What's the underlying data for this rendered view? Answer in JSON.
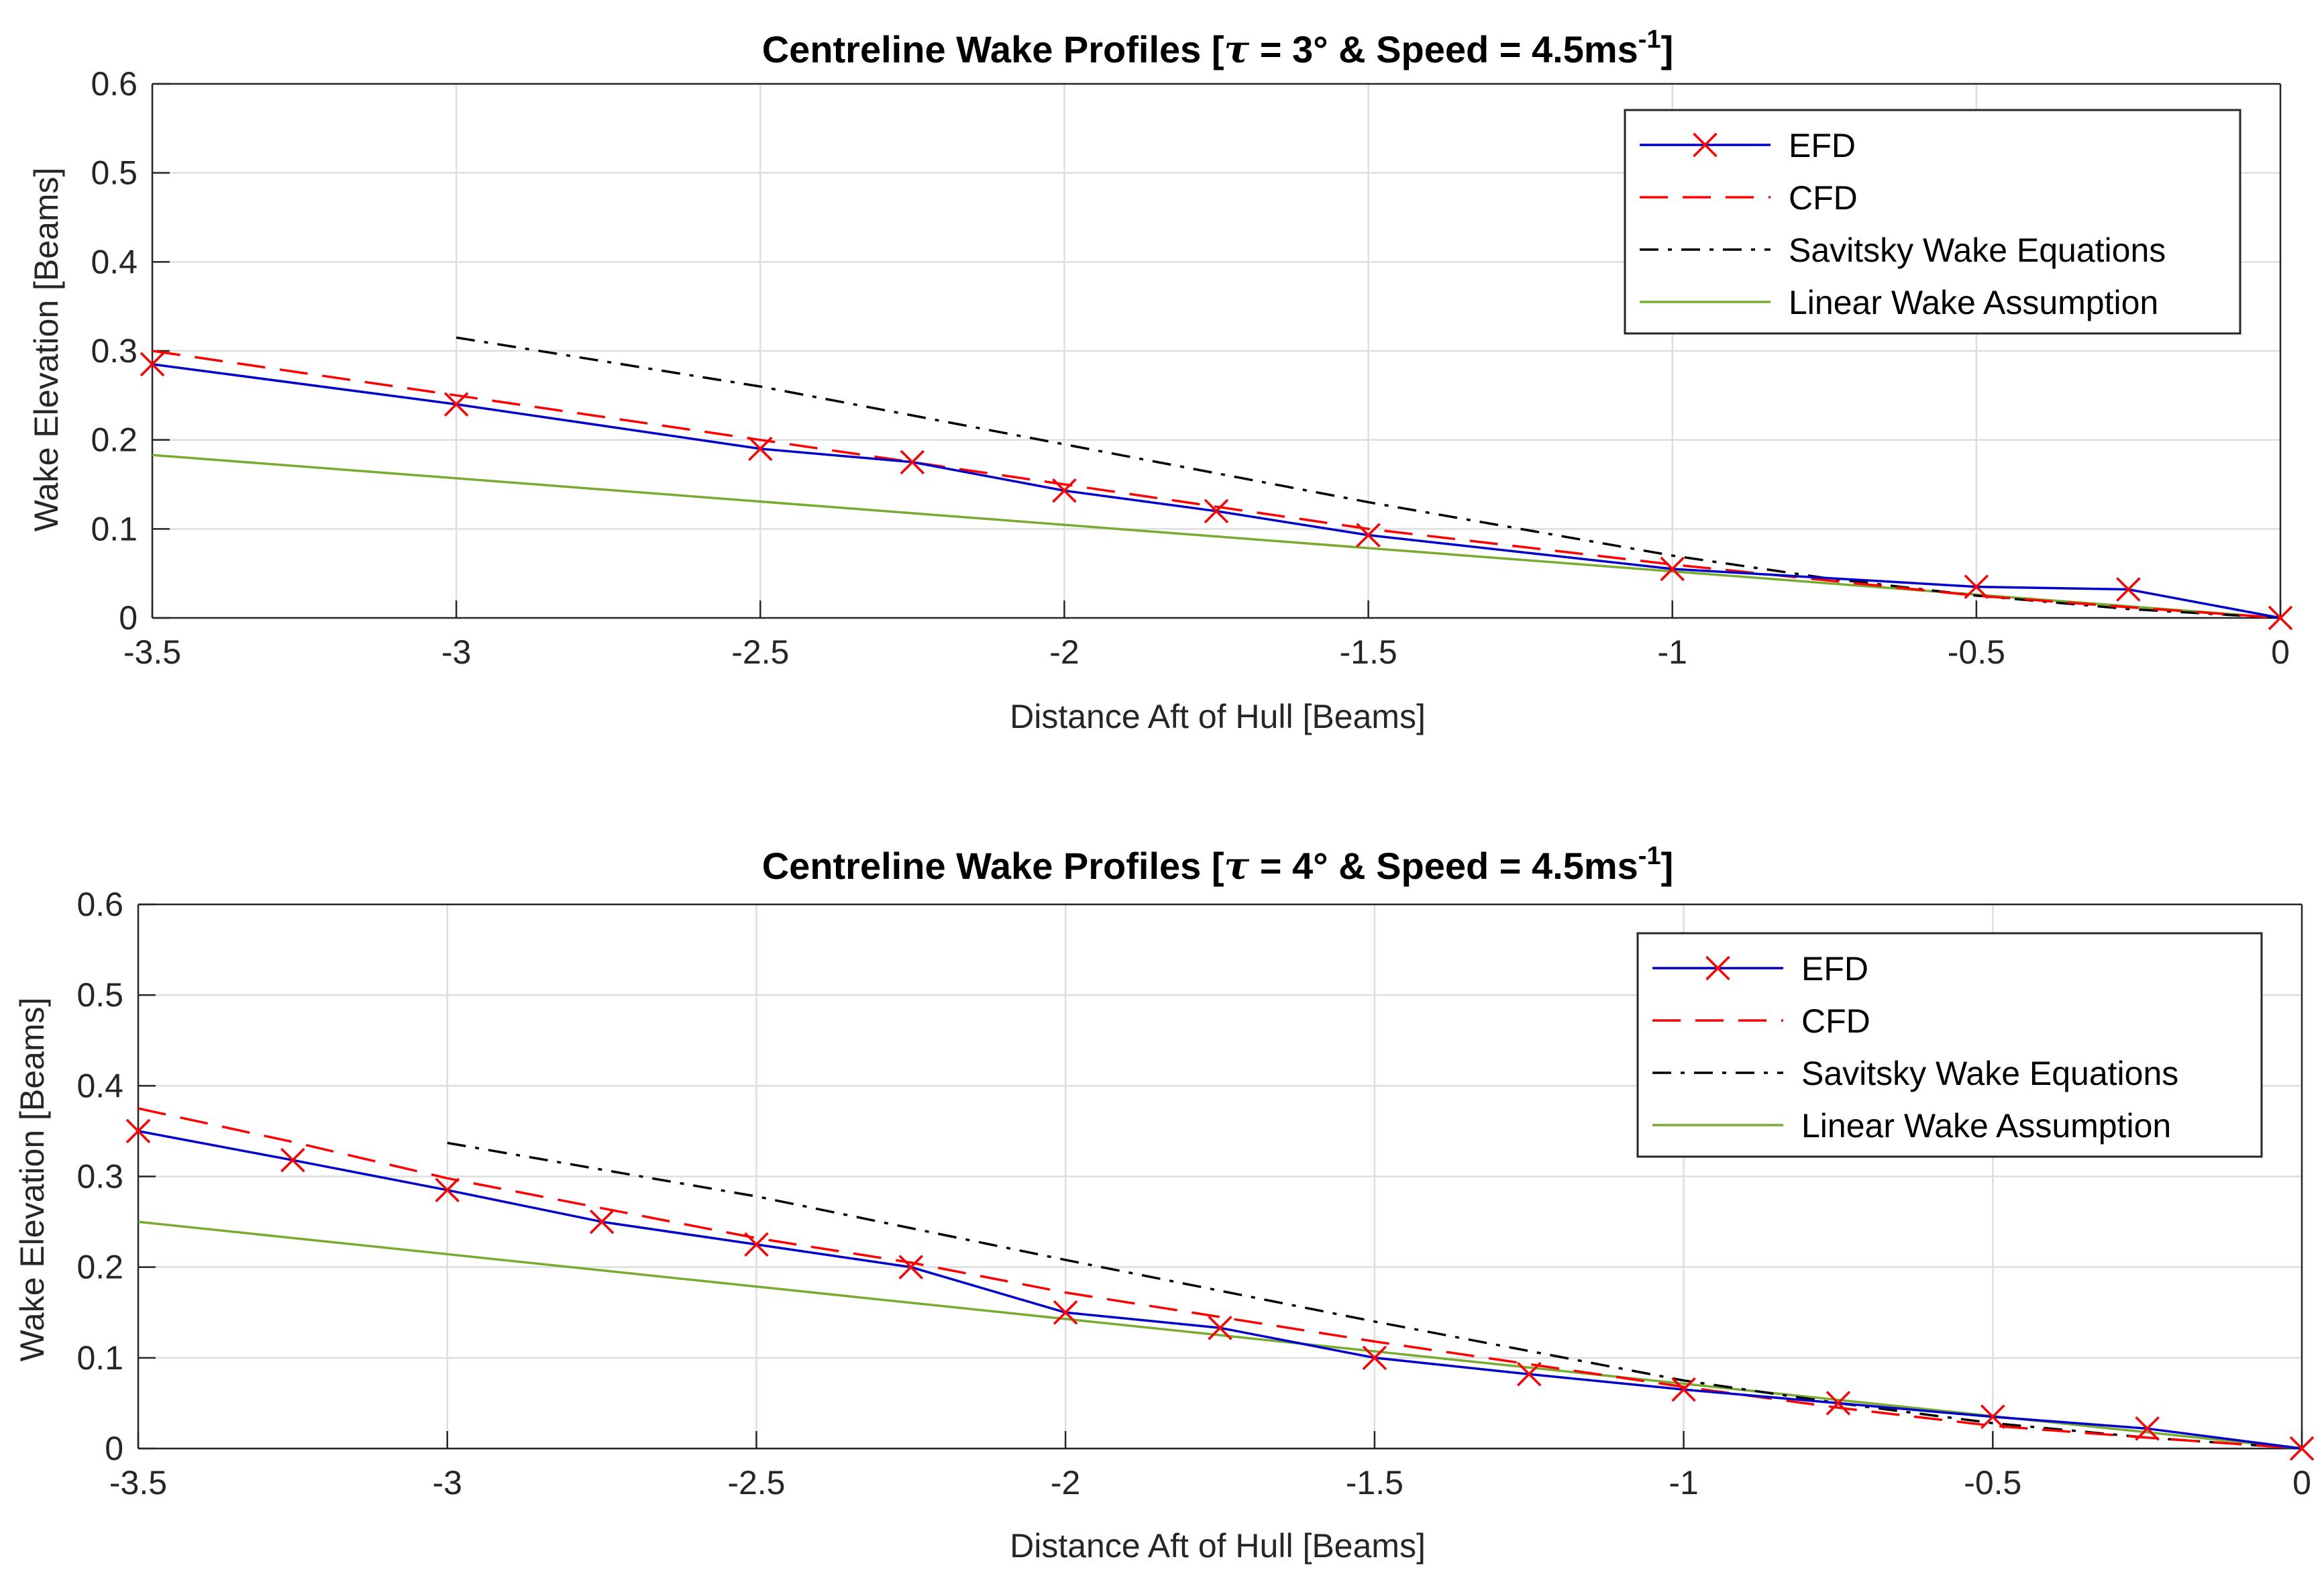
{
  "chart_data": [
    {
      "type": "line",
      "title_prefix": "Centreline Wake Profiles [",
      "title_tau": "τ",
      "title_mid": " = 3° & Speed = 4.5ms",
      "title_sup": "-1",
      "title_suffix": "]",
      "xlabel": "Distance Aft of Hull [Beams]",
      "ylabel": "Wake Elevation [Beams]",
      "xlim": [
        -3.5,
        0
      ],
      "ylim": [
        0,
        0.6
      ],
      "xticks": [
        -3.5,
        -3,
        -2.5,
        -2,
        -1.5,
        -1,
        -0.5,
        0
      ],
      "xtick_labels": [
        "-3.5",
        "-3",
        "-2.5",
        "-2",
        "-1.5",
        "-1",
        "-0.5",
        "0"
      ],
      "yticks": [
        0,
        0.1,
        0.2,
        0.3,
        0.4,
        0.5,
        0.6
      ],
      "ytick_labels": [
        "0",
        "0.1",
        "0.2",
        "0.3",
        "0.4",
        "0.5",
        "0.6"
      ],
      "grid": true,
      "legend_position": "top-right",
      "series": [
        {
          "name": "EFD",
          "color": "#0000cc",
          "style": "solid",
          "marker": "x",
          "marker_color": "#ff0000",
          "x": [
            -3.5,
            -3,
            -2.5,
            -2.25,
            -2,
            -1.75,
            -1.5,
            -1,
            -0.5,
            -0.25,
            0
          ],
          "y": [
            0.285,
            0.24,
            0.19,
            0.175,
            0.143,
            0.12,
            0.093,
            0.055,
            0.035,
            0.032,
            0
          ]
        },
        {
          "name": "CFD",
          "color": "#ff0000",
          "style": "dashed",
          "x": [
            -3.5,
            -3,
            -2.5,
            -2.25,
            -2,
            -1.75,
            -1.5,
            -1,
            -0.5,
            -0.25,
            0
          ],
          "y": [
            0.3,
            0.25,
            0.2,
            0.175,
            0.15,
            0.125,
            0.1,
            0.06,
            0.025,
            0.012,
            0
          ]
        },
        {
          "name": "Savitsky Wake Equations",
          "color": "#000000",
          "style": "dashdot",
          "x": [
            -3,
            -2.5,
            -2,
            -1.5,
            -1,
            -0.75,
            -0.5,
            -0.25,
            0
          ],
          "y": [
            0.315,
            0.26,
            0.195,
            0.13,
            0.07,
            0.045,
            0.025,
            0.01,
            0
          ]
        },
        {
          "name": "Linear Wake Assumption",
          "color": "#77ac30",
          "style": "solid",
          "x": [
            -3.5,
            0
          ],
          "y": [
            0.183,
            0
          ]
        }
      ]
    },
    {
      "type": "line",
      "title_prefix": "Centreline Wake Profiles [",
      "title_tau": "τ",
      "title_mid": " = 4° & Speed = 4.5ms",
      "title_sup": "-1",
      "title_suffix": "]",
      "xlabel": "Distance Aft of Hull [Beams]",
      "ylabel": "Wake Elevation [Beams]",
      "xlim": [
        -3.5,
        0
      ],
      "ylim": [
        0,
        0.6
      ],
      "xticks": [
        -3.5,
        -3,
        -2.5,
        -2,
        -1.5,
        -1,
        -0.5,
        0
      ],
      "xtick_labels": [
        "-3.5",
        "-3",
        "-2.5",
        "-2",
        "-1.5",
        "-1",
        "-0.5",
        "0"
      ],
      "yticks": [
        0,
        0.1,
        0.2,
        0.3,
        0.4,
        0.5,
        0.6
      ],
      "ytick_labels": [
        "0",
        "0.1",
        "0.2",
        "0.3",
        "0.4",
        "0.5",
        "0.6"
      ],
      "grid": true,
      "legend_position": "top-right",
      "series": [
        {
          "name": "EFD",
          "color": "#0000cc",
          "style": "solid",
          "marker": "x",
          "marker_color": "#ff0000",
          "x": [
            -3.5,
            -3.25,
            -3,
            -2.75,
            -2.5,
            -2.25,
            -2,
            -1.75,
            -1.5,
            -1.25,
            -1,
            -0.75,
            -0.5,
            -0.25,
            0
          ],
          "y": [
            0.35,
            0.318,
            0.285,
            0.25,
            0.225,
            0.2,
            0.15,
            0.133,
            0.1,
            0.082,
            0.065,
            0.05,
            0.035,
            0.022,
            0
          ]
        },
        {
          "name": "CFD",
          "color": "#ff0000",
          "style": "dashed",
          "x": [
            -3.5,
            -3.25,
            -3,
            -2.75,
            -2.5,
            -2.25,
            -2,
            -1.75,
            -1.5,
            -1.25,
            -1,
            -0.75,
            -0.5,
            -0.25,
            0
          ],
          "y": [
            0.375,
            0.338,
            0.298,
            0.265,
            0.232,
            0.205,
            0.172,
            0.145,
            0.118,
            0.093,
            0.068,
            0.045,
            0.025,
            0.012,
            0
          ]
        },
        {
          "name": "Savitsky Wake Equations",
          "color": "#000000",
          "style": "dashdot",
          "x": [
            -3,
            -2.5,
            -2,
            -1.5,
            -1,
            -0.75,
            -0.5,
            -0.25,
            0
          ],
          "y": [
            0.337,
            0.278,
            0.208,
            0.14,
            0.075,
            0.05,
            0.028,
            0.012,
            0
          ]
        },
        {
          "name": "Linear Wake Assumption",
          "color": "#77ac30",
          "style": "solid",
          "x": [
            -3.5,
            0
          ],
          "y": [
            0.25,
            0
          ]
        }
      ]
    }
  ]
}
